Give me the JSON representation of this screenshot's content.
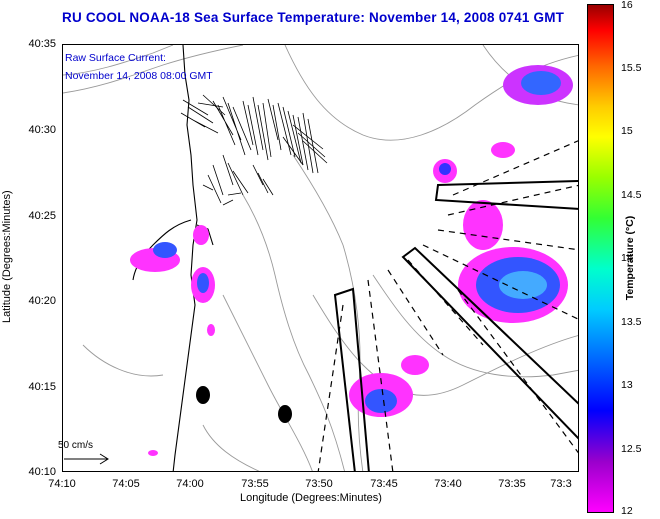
{
  "title": "RU COOL  NOAA-18  Sea Surface Temperature:  November 14, 2008 0741 GMT",
  "overlay": {
    "line1": "Raw Surface Current:",
    "line2": "November 14, 2008 08:00 GMT"
  },
  "axes": {
    "xlabel": "Longitude (Degrees:Minutes)",
    "ylabel": "Latitude (Degrees:Minutes)",
    "xticks": [
      "74:10",
      "74:05",
      "74:00",
      "73:55",
      "73:50",
      "73:45",
      "73:40",
      "73:35",
      "73:3"
    ],
    "yticks": [
      "40:35",
      "40:30",
      "40:25",
      "40:20",
      "40:15",
      "40:10"
    ]
  },
  "scale": {
    "label": "50 cm/s"
  },
  "colorbar": {
    "label": "Temperature (°C)",
    "ticks": [
      "16",
      "15.5",
      "15",
      "14.5",
      "14",
      "13.5",
      "13",
      "12.5",
      "12"
    ],
    "colors": {
      "low": "#ff00ff",
      "mid": "#0000ff",
      "high": "#990000"
    }
  },
  "colors": {
    "title": "#0000cc",
    "coast": "#000000",
    "bathymetry": "#888888"
  }
}
